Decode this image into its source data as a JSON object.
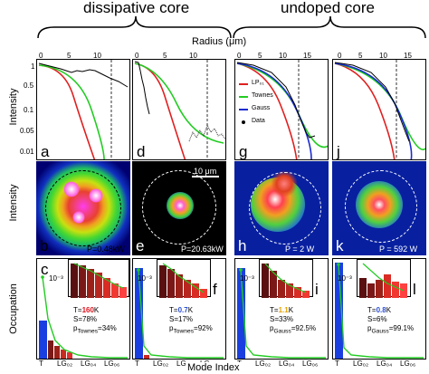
{
  "headers": {
    "left": "dissipative core",
    "right": "undoped core"
  },
  "axes": {
    "radius_label": "Radius (μm)",
    "intensity_label": "Intensity",
    "intensity_map_label": "Intensity",
    "occupation_label": "Occupation",
    "mode_index_label": "Mode Index",
    "radius_ticks": [
      "0",
      "5",
      "10",
      "15"
    ],
    "intensity_ticks": [
      "1",
      "0.5",
      "0.1",
      "0.05",
      "0.01"
    ],
    "inset_ytick": "10⁻³",
    "mode_ticks": [
      "T",
      "LG₀₂",
      "LG₀₄",
      "LG₀₆"
    ],
    "inset_mode_ticks": [
      "LG₀₁",
      "LG₀₃",
      "LG₀₅"
    ]
  },
  "legend": [
    "LP₀₁",
    "Townes",
    "Gauss",
    "Data"
  ],
  "panels": {
    "a": "a",
    "b": "b",
    "c": "c",
    "d": "d",
    "e": "e",
    "f": "f",
    "g": "g",
    "h": "h",
    "i": "i",
    "j": "j",
    "k": "k",
    "l": "l"
  },
  "maps": {
    "b_power": "P=0.48kW",
    "e_power": "P=20.63kW",
    "h_power": "P = 2 W",
    "k_power": "P = 592 W",
    "scalebar": "10 μm"
  },
  "stats": {
    "c": {
      "T_prefix": "T=",
      "T_value": "160",
      "T_unit": "K",
      "S": "S=78%",
      "p_prefix": "p",
      "p_sub": "Townes",
      "p_value": "=34%"
    },
    "f": {
      "T_prefix": "T=",
      "T_value": "0.7",
      "T_unit": "K",
      "S": "S=17%",
      "p_prefix": "p",
      "p_sub": "Townes",
      "p_value": "=92%"
    },
    "i": {
      "T_prefix": "T=",
      "T_value": "1.1",
      "T_unit": "K",
      "S": "S=33%",
      "p_prefix": "p",
      "p_sub": "Gauss",
      "p_value": "=92.5%"
    },
    "l": {
      "T_prefix": "T=",
      "T_value": "0.8",
      "T_unit": "K",
      "S": "S=6%",
      "p_prefix": "p",
      "p_sub": "Gauss",
      "p_value": "=99.1%"
    }
  },
  "colors": {
    "T_c": "#e0101a",
    "T_f": "#2a4fd8",
    "T_i": "#e6a000",
    "T_l": "#2a4fd8",
    "lp01": "#e02020",
    "townes": "#22cc22",
    "gauss": "#1a2bd0",
    "bar_blue": "#1a3fe0"
  },
  "chart_data": [
    {
      "type": "line",
      "panel": "a",
      "xlabel": "Radius (μm)",
      "ylabel": "Intensity",
      "scale": "log"
    },
    {
      "type": "line",
      "panel": "d",
      "xlabel": "Radius (μm)",
      "scale": "log"
    },
    {
      "type": "line",
      "panel": "g",
      "xlabel": "Radius (μm)",
      "scale": "log",
      "legend": [
        "LP₀₁",
        "Townes",
        "Gauss",
        "Data"
      ]
    },
    {
      "type": "line",
      "panel": "j",
      "xlabel": "Radius (μm)",
      "scale": "log"
    },
    {
      "type": "bar",
      "panel": "c",
      "categories": [
        "T",
        "LG₀₂",
        "LG₀₄",
        "LG₀₆"
      ],
      "ylabel": "Occupation"
    },
    {
      "type": "bar",
      "panel": "f",
      "categories": [
        "T",
        "LG₀₂",
        "LG₀₄",
        "LG₀₆"
      ]
    },
    {
      "type": "bar",
      "panel": "i",
      "categories": [
        "T",
        "LG₀₂",
        "LG₀₄",
        "LG₀₆"
      ]
    },
    {
      "type": "bar",
      "panel": "l",
      "categories": [
        "T",
        "LG₀₂",
        "LG₀₄",
        "LG₀₆"
      ]
    }
  ]
}
